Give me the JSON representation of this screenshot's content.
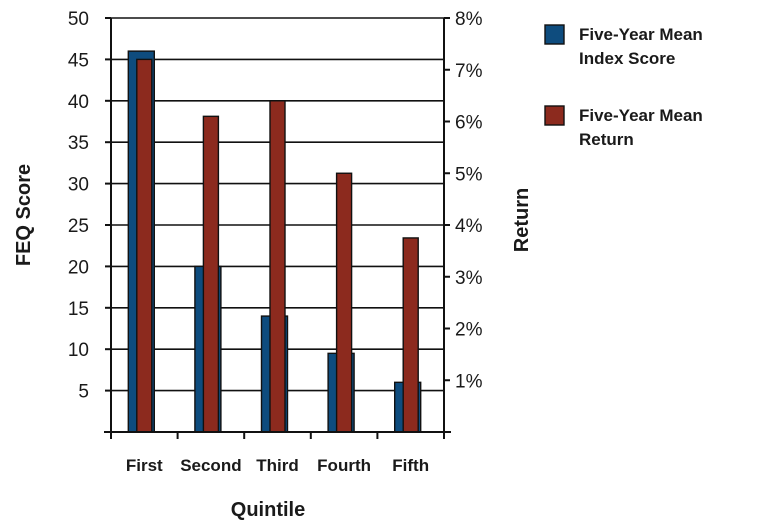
{
  "chart_data": {
    "type": "bar",
    "categories": [
      "First",
      "Second",
      "Third",
      "Fourth",
      "Fifth"
    ],
    "series": [
      {
        "name": "Five-Year Mean Index Score",
        "axis": "left",
        "color": "#0e4c7e",
        "values": [
          46,
          20,
          14,
          9.5,
          6
        ]
      },
      {
        "name": "Five-Year Mean Return",
        "axis": "right",
        "color": "#8c2a1e",
        "values": [
          7.2,
          6.1,
          6.4,
          5.0,
          3.75
        ]
      }
    ],
    "legend_lines": [
      [
        "Five-Year Mean",
        "Index Score"
      ],
      [
        "Five-Year Mean",
        "Return"
      ]
    ],
    "xlabel": "Quintile",
    "ylabel": "FEQ Score",
    "y2label": "Return",
    "ylim": [
      0,
      50
    ],
    "y2lim": [
      0,
      8
    ],
    "yticks": [
      5,
      10,
      15,
      20,
      25,
      30,
      35,
      40,
      45,
      50
    ],
    "y2ticks": [
      "1%",
      "2%",
      "3%",
      "4%",
      "5%",
      "6%",
      "7%",
      "8%"
    ],
    "y2tick_values": [
      1,
      2,
      3,
      4,
      5,
      6,
      7,
      8
    ],
    "grid": true,
    "legend_position": "right"
  }
}
